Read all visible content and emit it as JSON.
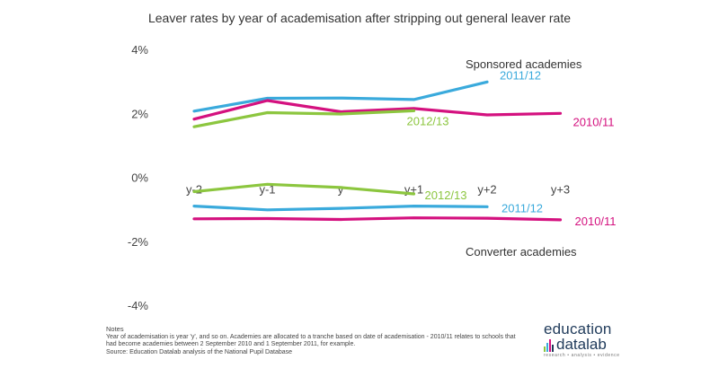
{
  "chart_data": {
    "type": "line",
    "title": "Leaver rates by year of academisation after stripping out general leaver rate",
    "categories": [
      "y-2",
      "y-1",
      "y",
      "y+1",
      "y+2",
      "y+3"
    ],
    "ylim": [
      -4,
      4
    ],
    "yticks": [
      4,
      2,
      0,
      -2,
      -4
    ],
    "ytick_labels": [
      "4%",
      "2%",
      "0%",
      "-2%",
      "-4%"
    ],
    "grid": false,
    "group_labels": [
      "Sponsored academies",
      "Converter academies"
    ],
    "series": [
      {
        "name": "2011/12",
        "group": "Sponsored academies",
        "color": "#3aaadc",
        "values": [
          2.07,
          2.47,
          2.48,
          2.43,
          2.98,
          null
        ]
      },
      {
        "name": "2010/11",
        "group": "Sponsored academies",
        "color": "#d4117f",
        "values": [
          1.82,
          2.4,
          2.05,
          2.15,
          1.95,
          2.0
        ]
      },
      {
        "name": "2012/13",
        "group": "Sponsored academies",
        "color": "#8cc63f",
        "values": [
          1.58,
          2.02,
          1.98,
          2.08,
          null,
          null
        ]
      },
      {
        "name": "2012/13",
        "group": "Converter academies",
        "color": "#8cc63f",
        "values": [
          -0.45,
          -0.22,
          -0.32,
          -0.52,
          null,
          null
        ]
      },
      {
        "name": "2011/12",
        "group": "Converter academies",
        "color": "#3aaadc",
        "values": [
          -0.9,
          -1.02,
          -0.97,
          -0.9,
          -0.92,
          null
        ]
      },
      {
        "name": "2010/11",
        "group": "Converter academies",
        "color": "#d4117f",
        "values": [
          -1.3,
          -1.29,
          -1.32,
          -1.27,
          -1.28,
          -1.33
        ]
      }
    ]
  },
  "notes": {
    "title": "Notes",
    "lines": [
      "Year of academisation is year 'y', and so on. Academies are allocated to a tranche based on date of academisation - 2010/11 relates to schools that",
      "had become academies between 2 September 2010 and 1 September 2011, for example.",
      "Source: Education Datalab analysis of the National Pupil Database"
    ]
  },
  "logo": {
    "word_top": "education",
    "word_bottom": "datalab",
    "tagline": "research • analysis • evidence",
    "bar_colors": [
      "#8cc63f",
      "#3aaadc",
      "#d4117f",
      "#1f3a5a"
    ]
  }
}
